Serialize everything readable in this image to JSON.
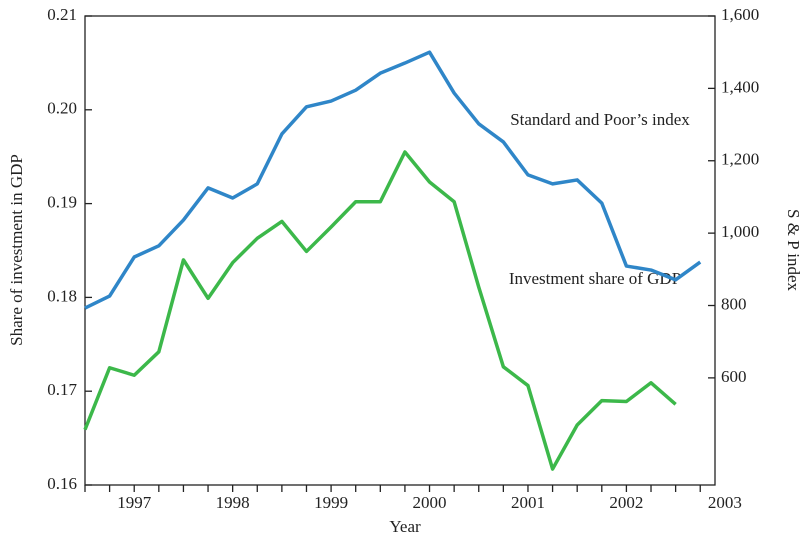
{
  "chart_data": {
    "type": "line",
    "x_label": "Year",
    "y_label": "Share of investment in GDP",
    "y2_label": "S & P index",
    "annotations": [
      "Standard and Poor’s index",
      "Investment share of GDP"
    ],
    "x": [
      1996.5,
      1996.75,
      1997,
      1997.25,
      1997.5,
      1997.75,
      1998,
      1998.25,
      1998.5,
      1998.75,
      1999,
      1999.25,
      1999.5,
      1999.75,
      2000,
      2000.25,
      2000.5,
      2000.75,
      2001,
      2001.25,
      2001.5,
      2001.75,
      2002,
      2002.25,
      2002.5,
      2002.75
    ],
    "series": [
      {
        "name": "Standard and Poor’s index",
        "color": "#2f86c8",
        "axis": "y2",
        "values": [
          793,
          826,
          934,
          965,
          1036,
          1125,
          1097,
          1136,
          1274,
          1349,
          1365,
          1395,
          1442,
          1470,
          1500,
          1387,
          1302,
          1252,
          1161,
          1136,
          1147,
          1083,
          909,
          898,
          871,
          920
        ]
      },
      {
        "name": "Investment share of GDP",
        "color": "#3cb84a",
        "values": [
          0.1659,
          0.1725,
          0.1717,
          0.1742,
          0.184,
          0.1799,
          0.1837,
          0.1863,
          0.1881,
          0.1849,
          0.1875,
          0.1902,
          0.1902,
          0.1955,
          0.1923,
          0.1902,
          0.1811,
          0.1726,
          0.1706,
          0.1617,
          0.1664,
          0.169,
          0.1689,
          0.1709,
          0.1686,
          null
        ]
      }
    ],
    "xlim": [
      1996.5,
      2002.9
    ],
    "xticks": [
      1997,
      1998,
      1999,
      2000,
      2001,
      2002,
      2003
    ],
    "xminor_ticks": [
      1996.5,
      1996.75,
      1997.25,
      1997.5,
      1997.75,
      1998.25,
      1998.5,
      1998.75,
      1999.25,
      1999.5,
      1999.75,
      2000.25,
      2000.5,
      2000.75,
      2001.25,
      2001.5,
      2001.75,
      2002.25,
      2002.5,
      2002.75
    ],
    "ylim": [
      0.16,
      0.21
    ],
    "yticks": [
      0.16,
      0.17,
      0.18,
      0.19,
      {
        "value": 0.2,
        "label": "0.20"
      },
      0.21
    ],
    "y2lim": [
      304,
      1600
    ],
    "y2ticks": [
      600,
      800,
      {
        "value": 1000,
        "label": "1,000"
      },
      {
        "value": 1200,
        "label": "1,200"
      },
      {
        "value": 1400,
        "label": "1,400"
      },
      {
        "value": 1600,
        "label": "1,600"
      }
    ]
  }
}
